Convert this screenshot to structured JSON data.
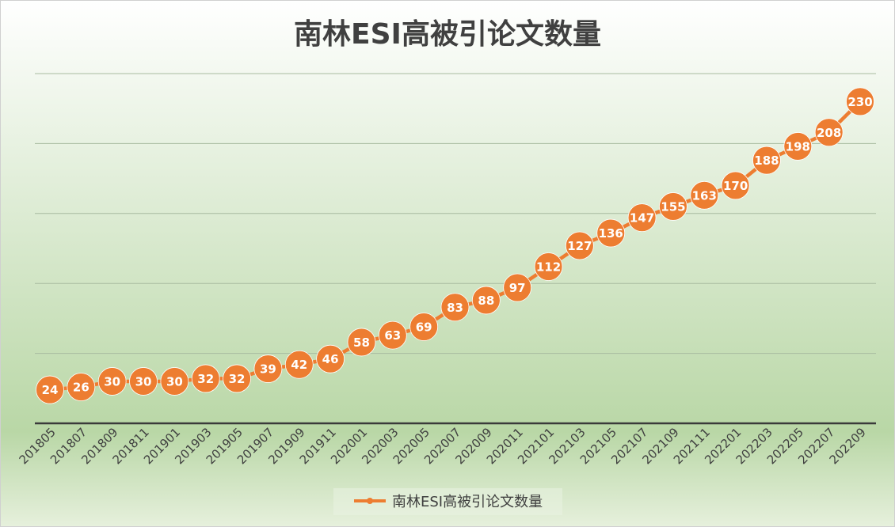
{
  "chart_data": {
    "type": "line",
    "title": "南林ESI高被引论文数量",
    "xlabel": "",
    "ylabel": "",
    "ylim": [
      0,
      250
    ],
    "grid": true,
    "legend_position": "bottom",
    "categories": [
      "201805",
      "201807",
      "201809",
      "201811",
      "201901",
      "201903",
      "201905",
      "201907",
      "201909",
      "201911",
      "202001",
      "202003",
      "202005",
      "202007",
      "202009",
      "202011",
      "202101",
      "202103",
      "202105",
      "202107",
      "202109",
      "202111",
      "202201",
      "202203",
      "202205",
      "202207",
      "202209"
    ],
    "series": [
      {
        "name": "南林ESI高被引论文数量",
        "values": [
          24,
          26,
          30,
          30,
          30,
          32,
          32,
          39,
          42,
          46,
          58,
          63,
          69,
          83,
          88,
          97,
          112,
          127,
          136,
          147,
          155,
          163,
          170,
          188,
          198,
          208,
          230
        ]
      }
    ]
  },
  "colors": {
    "series": "#ED7D31",
    "marker_text": "#FFFFFF",
    "title": "#404040",
    "grid": "#A8BBA0",
    "axis": "#3A3A3A",
    "background_top": "#FFFFFF",
    "background_mid": "#B9D7A6",
    "background_bottom": "#E6F0DC"
  }
}
